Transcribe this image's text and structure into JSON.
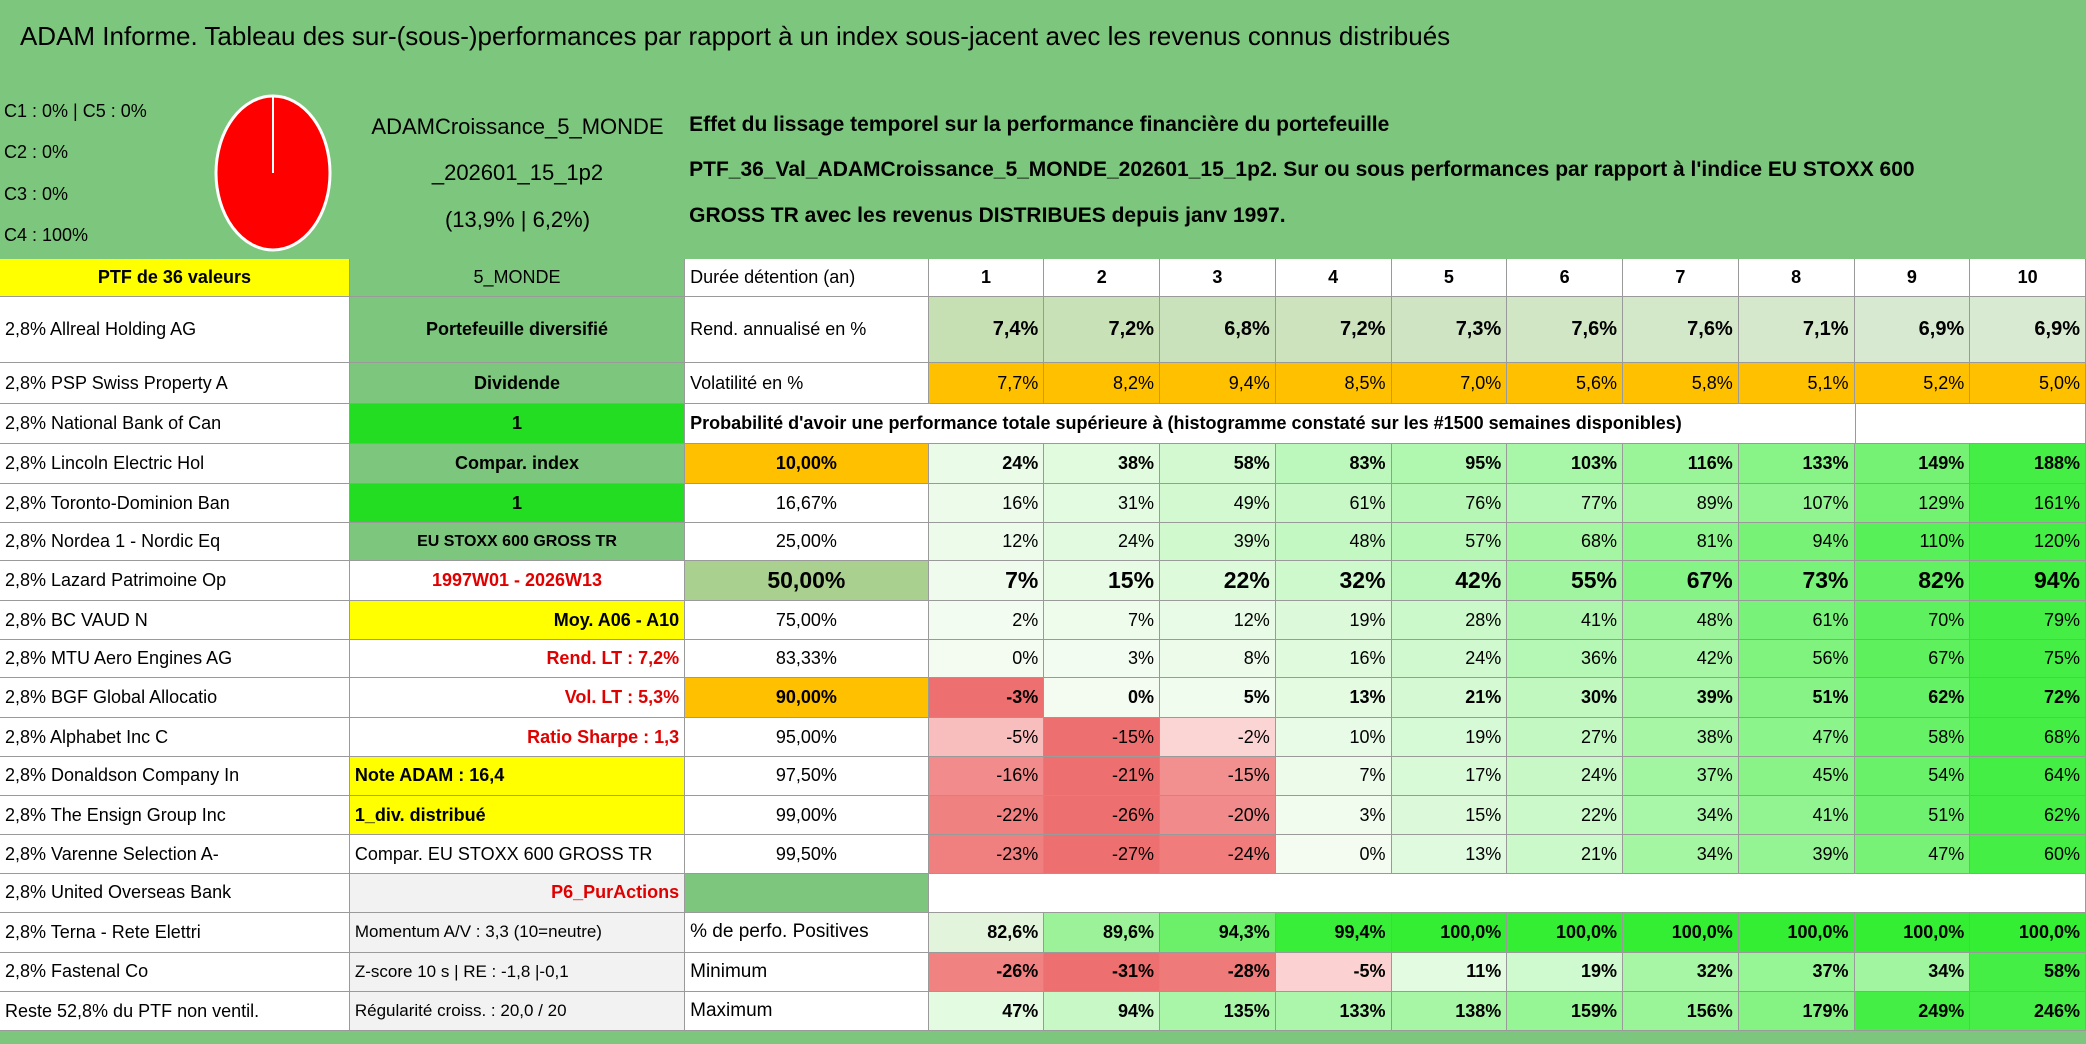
{
  "title": "ADAM Informe. Tableau des sur-(sous-)performances par rapport à un index sous-jacent avec les revenus connus distribués",
  "classes": [
    "C1 : 0% | C5 : 0%",
    "C2 : 0%",
    "C3 : 0%",
    "C4 : 100%"
  ],
  "portfolio": [
    "ADAMCroissance_5_MONDE",
    "_202601_15_1p2",
    "(13,9% | 6,2%)"
  ],
  "description": [
    "Effet du lissage temporel sur la performance financière du portefeuille",
    "PTF_36_Val_ADAMCroissance_5_MONDE_202601_15_1p2. Sur ou sous performances par rapport à l'indice EU STOXX 600",
    "GROSS TR avec les revenus DISTRIBUES depuis janv 1997."
  ],
  "holdings": [
    "PTF de 36 valeurs",
    "2,8% Allreal Holding AG",
    "2,8% PSP Swiss Property A",
    "2,8% National Bank of Can",
    "2,8% Lincoln Electric Hol",
    "2,8% Toronto-Dominion Ban",
    "2,8% Nordea 1 - Nordic Eq",
    "2,8% Lazard Patrimoine Op",
    "2,8% BC VAUD N",
    "2,8% MTU Aero Engines AG",
    "2,8% BGF Global Allocatio",
    "2,8% Alphabet Inc C",
    "2,8% Donaldson Company In",
    "2,8% The Ensign Group Inc",
    "2,8% Varenne Selection A-",
    "2,8% United Overseas Bank",
    "2,8% Terna - Rete Elettri",
    "2,8% Fastenal Co",
    "Reste 52,8% du PTF non ventil."
  ],
  "panel": [
    "5_MONDE",
    "Portefeuille diversifié",
    "Dividende",
    "1",
    "Compar. index",
    "1",
    "EU STOXX 600 GROSS TR",
    "1997W01 - 2026W13",
    "Moy. A06 - A10",
    "Rend. LT : 7,2%",
    "Vol. LT : 5,3%",
    "Ratio Sharpe : 1,3",
    "Note ADAM : 16,4",
    "1_div. distribué",
    "Compar. EU STOXX 600 GROSS TR",
    "P6_PurActions",
    "Momentum A/V : 3,3 (10=neutre)",
    "Z-score 10 s | RE : -1,8 |-0,1",
    "Régularité croiss. : 20,0 / 20"
  ],
  "periods": {
    "label": "Durée détention (an)",
    "years": [
      1,
      2,
      3,
      4,
      5,
      6,
      7,
      8,
      9,
      10
    ]
  },
  "stats": [
    {
      "label": "Rend. annualisé en %",
      "values": [
        "7,4%",
        "7,2%",
        "6,8%",
        "7,2%",
        "7,3%",
        "7,6%",
        "7,6%",
        "7,1%",
        "6,9%",
        "6,9%"
      ]
    },
    {
      "label": "Volatilité en %",
      "values": [
        "7,7%",
        "8,2%",
        "9,4%",
        "8,5%",
        "7,0%",
        "5,6%",
        "5,8%",
        "5,1%",
        "5,2%",
        "5,0%"
      ]
    }
  ],
  "probability": {
    "title": "Probabilité d'avoir une performance totale supérieure à (histogramme constaté sur les #1500 semaines disponibles)",
    "rows": [
      {
        "threshold": "10,00%",
        "values": [
          "24%",
          "38%",
          "58%",
          "83%",
          "95%",
          "103%",
          "116%",
          "133%",
          "149%",
          "188%"
        ]
      },
      {
        "threshold": "16,67%",
        "values": [
          "16%",
          "31%",
          "49%",
          "61%",
          "76%",
          "77%",
          "89%",
          "107%",
          "129%",
          "161%"
        ]
      },
      {
        "threshold": "25,00%",
        "values": [
          "12%",
          "24%",
          "39%",
          "48%",
          "57%",
          "68%",
          "81%",
          "94%",
          "110%",
          "120%"
        ]
      },
      {
        "threshold": "50,00%",
        "values": [
          "7%",
          "15%",
          "22%",
          "32%",
          "42%",
          "55%",
          "67%",
          "73%",
          "82%",
          "94%"
        ]
      },
      {
        "threshold": "75,00%",
        "values": [
          "2%",
          "7%",
          "12%",
          "19%",
          "28%",
          "41%",
          "48%",
          "61%",
          "70%",
          "79%"
        ]
      },
      {
        "threshold": "83,33%",
        "values": [
          "0%",
          "3%",
          "8%",
          "16%",
          "24%",
          "36%",
          "42%",
          "56%",
          "67%",
          "75%"
        ]
      },
      {
        "threshold": "90,00%",
        "values": [
          "-3%",
          "0%",
          "5%",
          "13%",
          "21%",
          "30%",
          "39%",
          "51%",
          "62%",
          "72%"
        ]
      },
      {
        "threshold": "95,00%",
        "values": [
          "-5%",
          "-15%",
          "-2%",
          "10%",
          "19%",
          "27%",
          "38%",
          "47%",
          "58%",
          "68%"
        ]
      },
      {
        "threshold": "97,50%",
        "values": [
          "-16%",
          "-21%",
          "-15%",
          "7%",
          "17%",
          "24%",
          "37%",
          "45%",
          "54%",
          "64%"
        ]
      },
      {
        "threshold": "99,00%",
        "values": [
          "-22%",
          "-26%",
          "-20%",
          "3%",
          "15%",
          "22%",
          "34%",
          "41%",
          "51%",
          "62%"
        ]
      },
      {
        "threshold": "99,50%",
        "values": [
          "-23%",
          "-27%",
          "-24%",
          "0%",
          "13%",
          "21%",
          "34%",
          "39%",
          "47%",
          "60%"
        ]
      }
    ]
  },
  "summary": [
    {
      "label": "% de perfo. Positives",
      "values": [
        "82,6%",
        "89,6%",
        "94,3%",
        "99,4%",
        "100,0%",
        "100,0%",
        "100,0%",
        "100,0%",
        "100,0%",
        "100,0%"
      ]
    },
    {
      "label": "Minimum",
      "values": [
        "-26%",
        "-31%",
        "-28%",
        "-5%",
        "11%",
        "19%",
        "32%",
        "37%",
        "34%",
        "58%"
      ]
    },
    {
      "label": "Maximum",
      "values": [
        "47%",
        "94%",
        "135%",
        "133%",
        "138%",
        "159%",
        "156%",
        "179%",
        "249%",
        "246%"
      ]
    }
  ]
}
